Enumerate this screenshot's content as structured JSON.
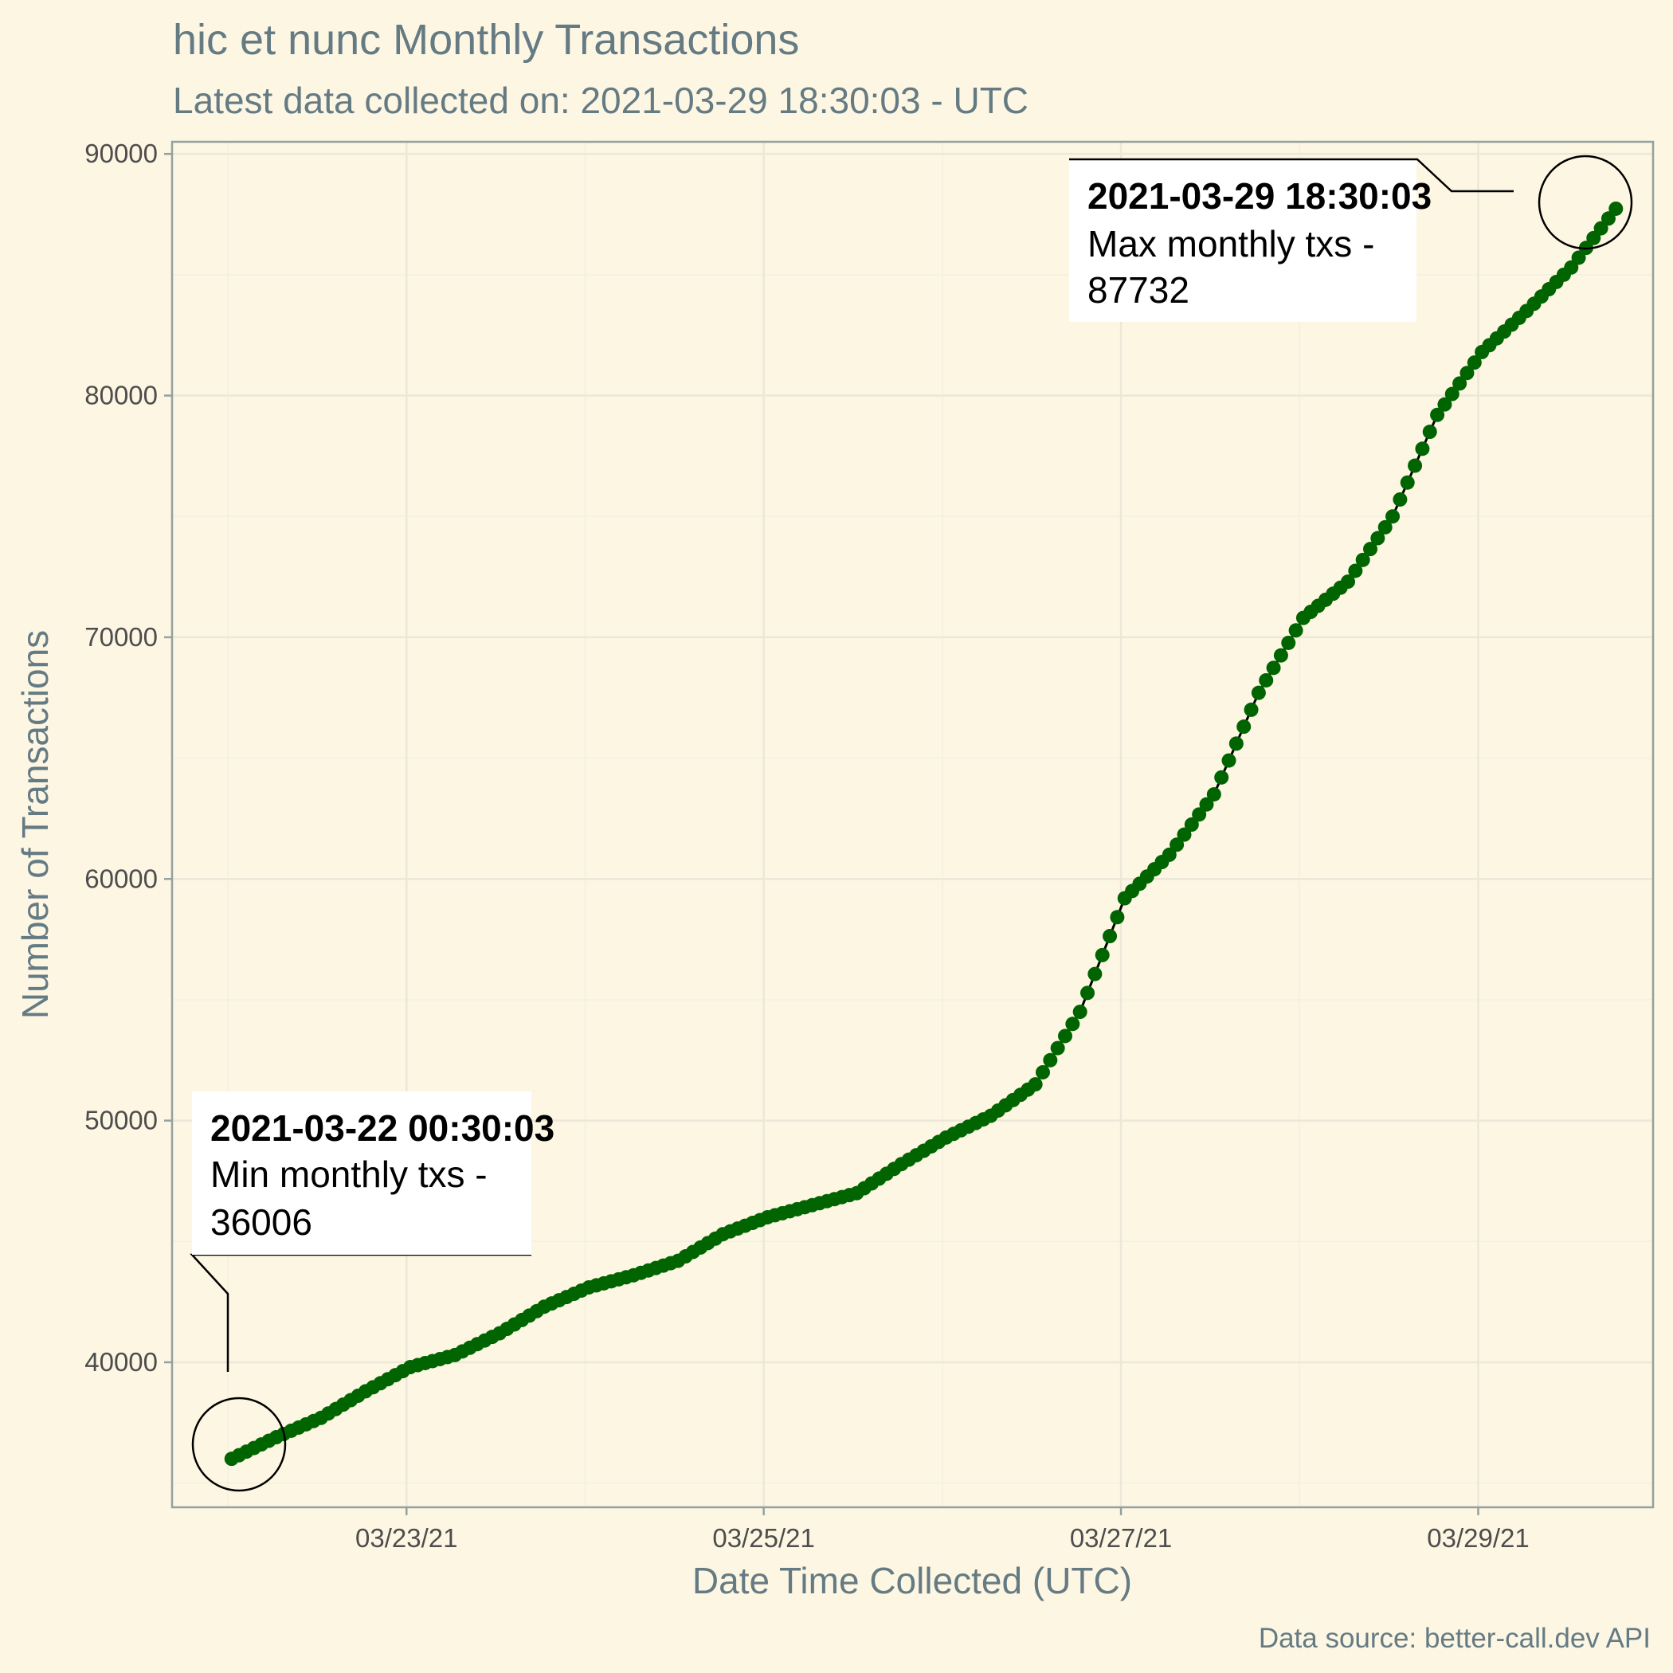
{
  "chart_data": {
    "type": "line",
    "title": "hic et nunc Monthly Transactions",
    "subtitle": "Latest data collected on: 2021-03-29 18:30:03  - UTC",
    "xlabel": "Date Time Collected (UTC)",
    "ylabel": "Number of Transactions",
    "caption": "Data source: better-call.dev API",
    "xlim": [
      "2021-03-21 16:30",
      "2021-03-29 23:30"
    ],
    "ylim": [
      34000,
      90500
    ],
    "x_ticks": [
      "2021-03-23",
      "2021-03-25",
      "2021-03-27",
      "2021-03-29"
    ],
    "x_tick_labels": [
      "03/23/21",
      "03/25/21",
      "03/27/21",
      "03/29/21"
    ],
    "y_ticks": [
      40000,
      50000,
      60000,
      70000,
      80000,
      90000
    ],
    "y_tick_labels": [
      "40000",
      "50000",
      "60000",
      "70000",
      "80000",
      "90000"
    ],
    "grid": true,
    "series_color": "#006400",
    "series": [
      {
        "x": [
          "2021-03-22 00:30",
          "2021-03-22 06:30",
          "2021-03-22 12:30",
          "2021-03-22 18:30",
          "2021-03-23 00:30",
          "2021-03-23 06:30",
          "2021-03-23 12:30",
          "2021-03-23 18:30",
          "2021-03-24 00:30",
          "2021-03-24 06:30",
          "2021-03-24 12:30",
          "2021-03-24 18:30",
          "2021-03-25 00:30",
          "2021-03-25 06:30",
          "2021-03-25 12:30",
          "2021-03-25 18:30",
          "2021-03-26 00:30",
          "2021-03-26 06:30",
          "2021-03-26 12:30",
          "2021-03-26 18:30",
          "2021-03-27 00:30",
          "2021-03-27 06:30",
          "2021-03-27 12:30",
          "2021-03-27 18:30",
          "2021-03-28 00:30",
          "2021-03-28 06:30",
          "2021-03-28 12:30",
          "2021-03-28 18:30",
          "2021-03-29 00:30",
          "2021-03-29 06:30",
          "2021-03-29 12:30",
          "2021-03-29 18:30"
        ],
        "values": [
          36006,
          36900,
          37700,
          38800,
          39800,
          40300,
          41200,
          42300,
          43100,
          43600,
          44200,
          45300,
          46000,
          46500,
          47000,
          48200,
          49300,
          50200,
          51500,
          54500,
          59200,
          61000,
          63500,
          67700,
          70800,
          72300,
          75000,
          79200,
          81800,
          83500,
          85300,
          87732
        ]
      }
    ],
    "annotations": [
      {
        "datetime": "2021-03-22 00:30:03",
        "label": "Min monthly txs -",
        "value": "36006"
      },
      {
        "datetime": "2021-03-29 18:30:03",
        "label": "Max monthly txs -",
        "value": "87732"
      }
    ]
  }
}
